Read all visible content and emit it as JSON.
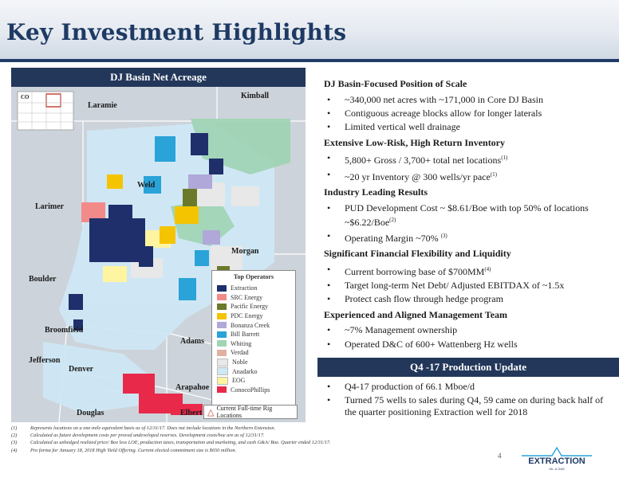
{
  "page": {
    "title": "Key Investment Highlights",
    "page_number": "4"
  },
  "map": {
    "title": "DJ Basin Net Acreage",
    "inset_label": "CO",
    "labels": {
      "kimball": "Kimball",
      "laramie": "Laramie",
      "weld": "Weld",
      "larimer": "Larimer",
      "morgan": "Morgan",
      "boulder": "Boulder",
      "broomfield": "Broomfield",
      "adams": "Adams",
      "jefferson": "Jefferson",
      "denver": "Denver",
      "arapahoe": "Arapahoe",
      "douglas": "Douglas",
      "elbert": "Elbert"
    },
    "legend_title": "Top Operators",
    "operators": [
      {
        "name": "Extraction",
        "color": "#1f2f6b"
      },
      {
        "name": "SRC Energy",
        "color": "#f28a8a"
      },
      {
        "name": "Pacific Energy",
        "color": "#6b7a2a"
      },
      {
        "name": "PDC Energy",
        "color": "#f5c400"
      },
      {
        "name": "Bonanza Creek",
        "color": "#b0a8d8"
      },
      {
        "name": "Bill Barrett",
        "color": "#2aa3d8"
      },
      {
        "name": "Whiting",
        "color": "#9fd4b4"
      },
      {
        "name": "Verdad",
        "color": "#e0b0a0"
      },
      {
        "name": "Noble",
        "color": "#e8e8e8"
      },
      {
        "name": "Anadarko",
        "color": "#cfe8f5"
      },
      {
        "name": "EOG",
        "color": "#fff4a0"
      },
      {
        "name": "ConocoPhillips",
        "color": "#e8294a"
      }
    ],
    "rig_label": "Current Full-time Rig Locations"
  },
  "sections": [
    {
      "title": "DJ Basin-Focused Position of Scale",
      "bullets": [
        {
          "text": "~340,000 net acres with ~171,000 in Core DJ Basin"
        },
        {
          "text": "Contiguous acreage blocks allow for longer laterals"
        },
        {
          "text": "Limited vertical well drainage"
        }
      ]
    },
    {
      "title": "Extensive Low-Risk, High Return Inventory",
      "bullets": [
        {
          "text": "5,800+ Gross / 3,700+ total net locations",
          "sup": "(1)"
        },
        {
          "text": "~20 yr Inventory @ 300 wells/yr pace",
          "sup": "(1)"
        }
      ]
    },
    {
      "title": "Industry Leading Results",
      "bullets": [
        {
          "text": "PUD Development Cost ~ $8.61/Boe with top 50% of locations ~$6.22/Boe",
          "sup": "(2)"
        },
        {
          "text": "Operating Margin ~70% ",
          "sup": "(3)"
        }
      ]
    },
    {
      "title": "Significant Financial Flexibility and Liquidity",
      "bullets": [
        {
          "text": "Current borrowing base of $700MM",
          "sup": "(4)"
        },
        {
          "text": "Target long-term Net Debt/ Adjusted EBITDAX of ~1.5x"
        },
        {
          "text": "Protect cash flow through hedge program"
        }
      ]
    },
    {
      "title": "Experienced and Aligned Management Team",
      "bullets": [
        {
          "text": "~7% Management ownership"
        },
        {
          "text": "Operated D&C of 600+ Wattenberg Hz wells"
        }
      ]
    }
  ],
  "update": {
    "title": "Q4 -17  Production Update",
    "bullets": [
      {
        "text": "Q4-17 production of 66.1 Mboe/d"
      },
      {
        "text": "Turned 75 wells to sales during Q4, 59 came on during back half of the quarter positioning Extraction well for 2018"
      }
    ]
  },
  "footnotes": [
    {
      "num": "(1)",
      "text": "Represents locations on a one-mile equivalent basis as of 12/31/17. Does not include locations in the Northern Extension."
    },
    {
      "num": "(2)",
      "text": "Calculated as future development costs per proved undeveloped reserves. Development costs/boe are as of 12/31/17."
    },
    {
      "num": "(3)",
      "text": "Calculated as unhedged realized price/ Boe less LOE, production taxes, transportation and marketing, and cash G&A/ Boe. Quarter ended 12/31/17."
    },
    {
      "num": "(4)",
      "text": "Pro forma for January 18, 2018 High Yield Offering. Current elected commitment size is $650 million."
    }
  ],
  "logo": {
    "text": "EXTRACTION",
    "subtext": "OIL & GAS"
  }
}
